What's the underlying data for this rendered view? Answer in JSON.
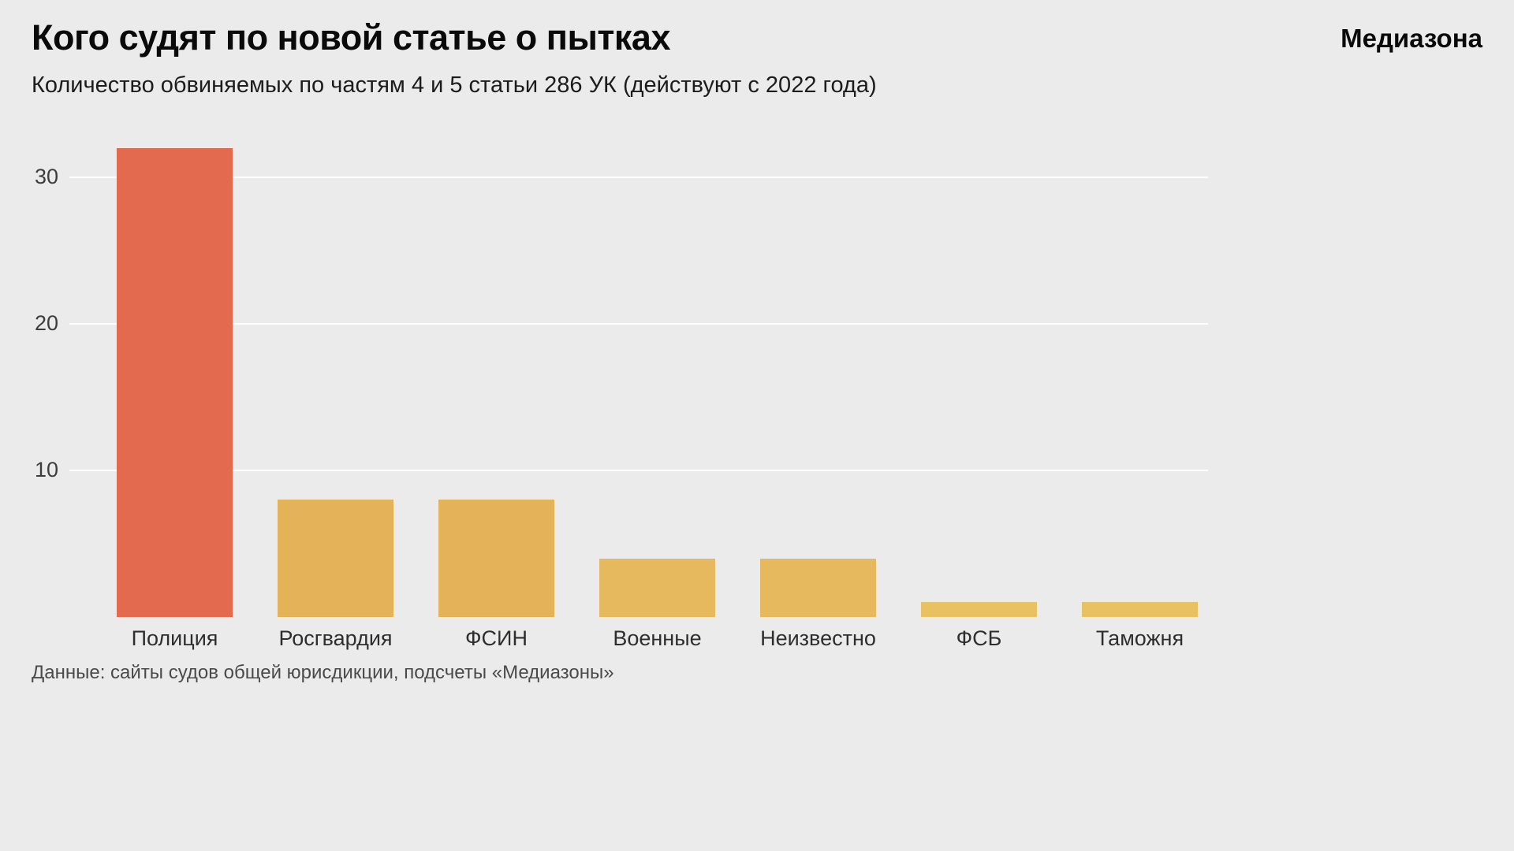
{
  "header": {
    "title": "Кого судят по новой статье о пытках",
    "brand": "Медиазона",
    "subtitle": "Количество обвиняемых по частям 4 и 5 статьи 286 УК (действуют с 2022 года)"
  },
  "footer": {
    "source": "Данные: сайты судов общей юрисдикции, подсчеты «Медиазоны»"
  },
  "chart_data": {
    "type": "bar",
    "title": "Кого судят по новой статье о пытках",
    "subtitle": "Количество обвиняемых по частям 4 и 5 статьи 286 УК (действуют с 2022 года)",
    "source": "Данные: сайты судов общей юрисдикции, подсчеты «Медиазоны»",
    "categories": [
      "Полиция",
      "Росгвардия",
      "ФСИН",
      "Военные",
      "Неизвестно",
      "ФСБ",
      "Таможня"
    ],
    "values": [
      32,
      8,
      8,
      4,
      4,
      1,
      1
    ],
    "colors": [
      "#e36a4f",
      "#e4b258",
      "#e4b258",
      "#e6b95e",
      "#e6b95e",
      "#e9c162",
      "#e9c162"
    ],
    "yticks": [
      10,
      20,
      30
    ],
    "ylim": [
      0,
      34
    ],
    "xlabel": "",
    "ylabel": "",
    "grid": true,
    "legend": false,
    "gridline_color": "#ffffff",
    "background_color": "#ebebeb"
  }
}
